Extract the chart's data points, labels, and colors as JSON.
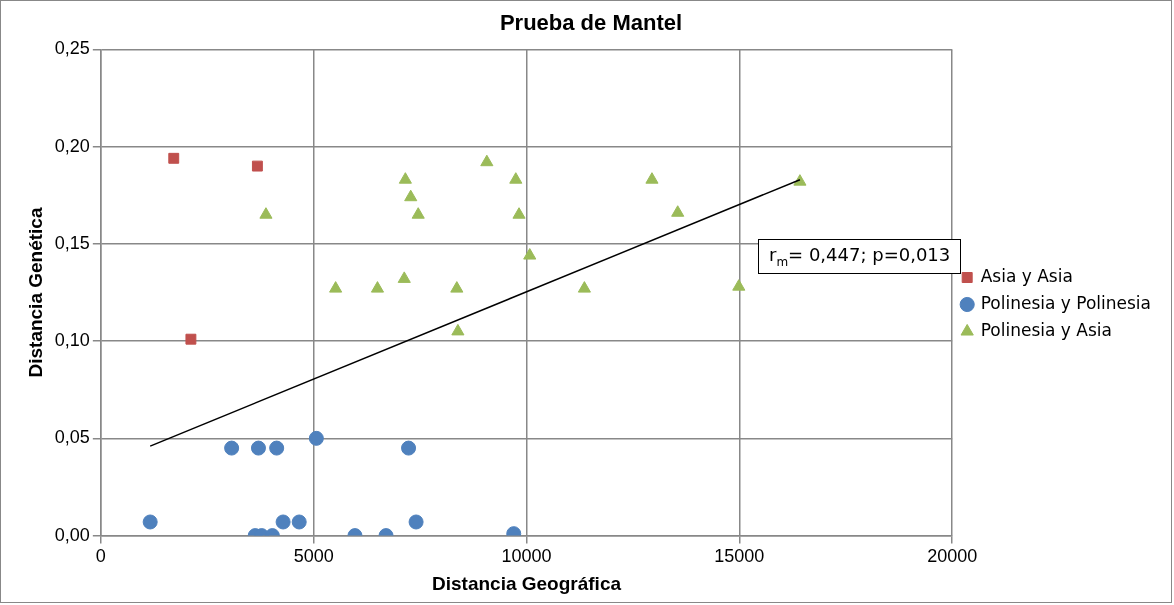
{
  "chart_data": {
    "type": "scatter",
    "title": "Prueba de Mantel",
    "xlabel": "Distancia Geográfica",
    "ylabel": "Distancia Genética",
    "series": [
      {
        "name": "Asia y Asia",
        "color": "#c0504d",
        "marker": "square",
        "x": [
          1713,
          3678,
          2116
        ],
        "values": [
          0.194,
          0.19,
          0.101
        ]
      },
      {
        "name": "Polinesia y Polinesia",
        "color": "#4f81bd",
        "marker": "circle",
        "x": [
          1159,
          3073,
          3703,
          4131,
          5063,
          7229,
          4282,
          4660,
          7406,
          3627,
          3778,
          4030,
          5970,
          6700,
          9700
        ],
        "values": [
          0.007,
          0.045,
          0.045,
          0.045,
          0.05,
          0.045,
          0.007,
          0.007,
          0.007,
          0,
          0,
          0,
          0,
          0,
          0.001
        ]
      },
      {
        "name": "Polinesia y Asia",
        "color": "#9bbb59",
        "marker": "triangle",
        "x": [
          5516,
          6499,
          7128,
          8363,
          8388,
          3879,
          7154,
          7280,
          7456,
          9068,
          9748,
          9824,
          10076,
          11360,
          12947,
          13552,
          14987,
          16423
        ],
        "values": [
          0.127,
          0.127,
          0.132,
          0.127,
          0.105,
          0.165,
          0.183,
          0.174,
          0.165,
          0.192,
          0.183,
          0.165,
          0.144,
          0.127,
          0.183,
          0.166,
          0.128,
          0.182
        ]
      },
      {
        "type": "line",
        "color": "#000000",
        "marker": "none",
        "x": [
          1159,
          16423
        ],
        "values": [
          0.046,
          0.183
        ]
      }
    ],
    "xlim": [
      0,
      20000
    ],
    "xticks": [
      0,
      5000,
      10000,
      15000,
      20000
    ],
    "ylim": [
      0,
      0.25
    ],
    "yticks": [
      {
        "value": 0,
        "label": "0,00"
      },
      {
        "value": 0.05,
        "label": "0,05"
      },
      {
        "value": 0.1,
        "label": "0,10"
      },
      {
        "value": 0.15,
        "label": "0,15"
      },
      {
        "value": 0.2,
        "label": "0,20"
      },
      {
        "value": 0.25,
        "label": "0,25"
      }
    ],
    "grid": true,
    "legend": "right",
    "annotations": [
      "r$_{m}$= 0,447; p=0,013"
    ]
  }
}
